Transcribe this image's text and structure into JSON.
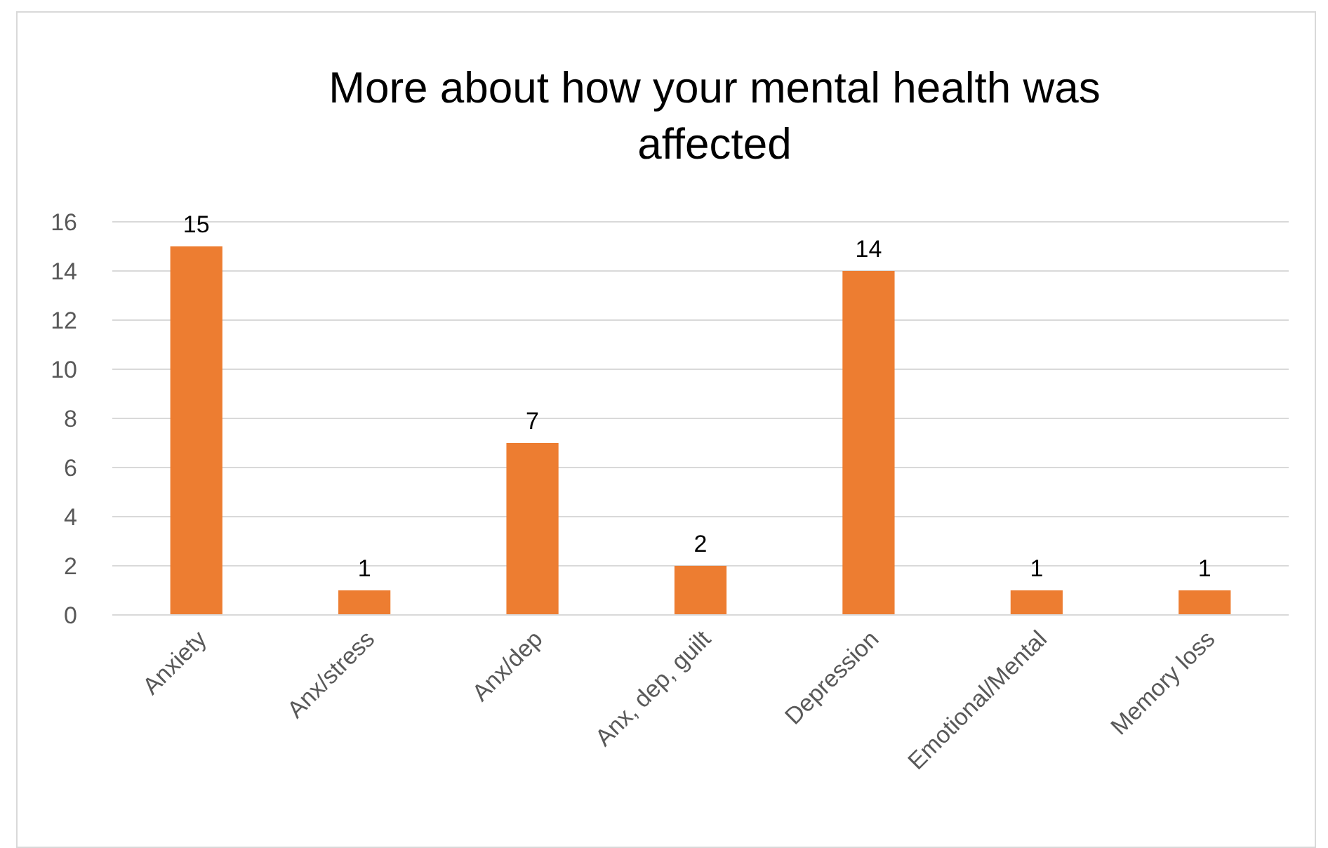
{
  "chart_data": {
    "type": "bar",
    "title": "More about how your mental health was affected",
    "categories": [
      "Anxiety",
      "Anx/stress",
      "Anx/dep",
      "Anx, dep, guilt",
      "Depression",
      "Emotional/Mental",
      "Memory loss"
    ],
    "values": [
      15,
      1,
      7,
      2,
      14,
      1,
      1
    ],
    "color": "#ed7d31",
    "ylim": [
      0,
      16
    ],
    "yticks": [
      0,
      2,
      4,
      6,
      8,
      10,
      12,
      14,
      16
    ],
    "grid": "y",
    "data_labels": true
  }
}
